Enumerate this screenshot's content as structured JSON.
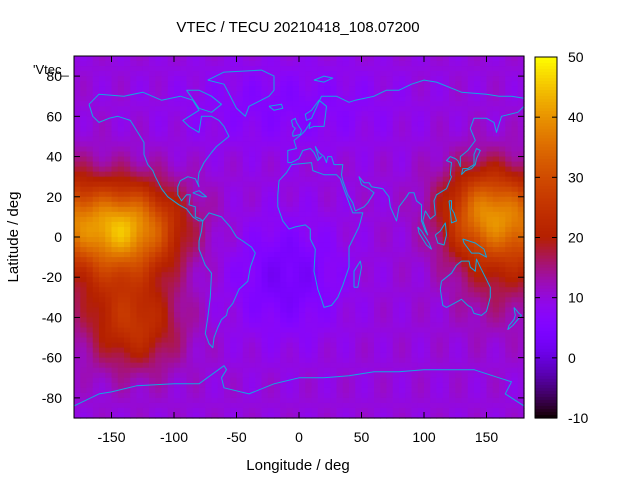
{
  "chart_data": {
    "type": "heatmap",
    "title": "VTEC / TECU 20210418_108.07200",
    "xlabel": "Longitude / deg",
    "ylabel": "Latitude / deg",
    "overlay_label": "'Vtec_",
    "xlim": [
      -180,
      180
    ],
    "ylim": [
      -90,
      90
    ],
    "x_ticks": [
      -150,
      -100,
      -50,
      0,
      50,
      100,
      150
    ],
    "y_ticks": [
      -80,
      -60,
      -40,
      -20,
      0,
      20,
      40,
      60,
      80
    ],
    "colorbar": {
      "min": -10,
      "max": 50,
      "ticks": [
        -10,
        0,
        10,
        20,
        30,
        40,
        50
      ],
      "colormap": "gnuplot-default (black-purple-red-orange-yellow)"
    },
    "grid": false,
    "overlay": "coastlines (cyan)",
    "coastline_color": "#12a8e0",
    "field_features": [
      {
        "name": "eastern-pacific-maximum",
        "lon": -140,
        "lat": 5,
        "vtec": 38
      },
      {
        "name": "western-pacific-maximum",
        "lon": 150,
        "lat": 12,
        "vtec": 36
      },
      {
        "name": "south-pacific-secondary-high",
        "lon": -130,
        "lat": -45,
        "vtec": 22
      },
      {
        "name": "south-atlantic-minimum",
        "lon": -10,
        "lat": -20,
        "vtec": 3
      },
      {
        "name": "north-polar-low",
        "lon": -10,
        "lat": 65,
        "vtec": 6
      },
      {
        "name": "background",
        "vtec": 10
      }
    ]
  }
}
